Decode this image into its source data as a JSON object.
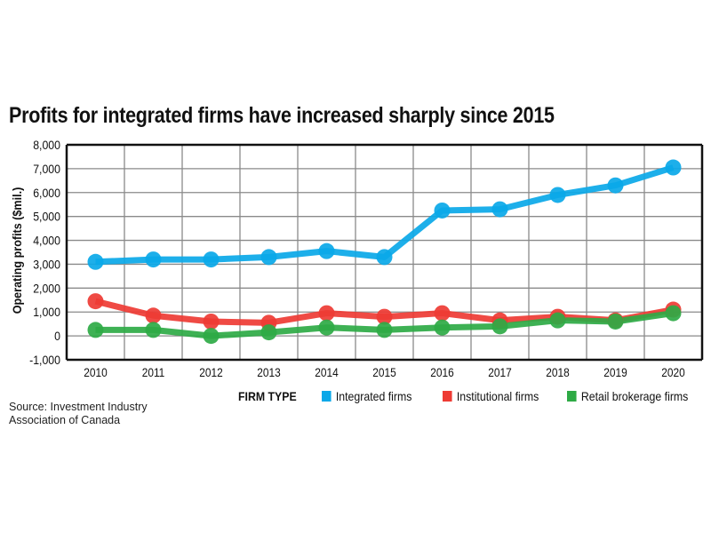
{
  "chart_data": {
    "type": "line",
    "title": "Profits for integrated firms have increased sharply since 2015",
    "xlabel": "",
    "ylabel": "Operating profits ($mil.)",
    "ylim": [
      -1000,
      8000
    ],
    "yticks": [
      8000,
      7000,
      6000,
      5000,
      4000,
      3000,
      2000,
      1000,
      0,
      -1000
    ],
    "ytick_labels": [
      "8,000",
      "7,000",
      "6,000",
      "5,000",
      "4,000",
      "3,000",
      "2,000",
      "1,000",
      "0",
      "-1,000"
    ],
    "categories": [
      "2010",
      "2011",
      "2012",
      "2013",
      "2014",
      "2015",
      "2016",
      "2017",
      "2018",
      "2019",
      "2020"
    ],
    "grid": true,
    "legend_title": "FIRM TYPE",
    "legend_position": "bottom-right",
    "series": [
      {
        "name": "Integrated firms",
        "color": "#0aa8e8",
        "values": [
          3100,
          3200,
          3200,
          3300,
          3550,
          3300,
          5250,
          5300,
          5900,
          6300,
          7050
        ]
      },
      {
        "name": "Institutional firms",
        "color": "#ee3b34",
        "values": [
          1450,
          850,
          600,
          550,
          950,
          800,
          950,
          650,
          800,
          650,
          1100
        ]
      },
      {
        "name": "Retail brokerage firms",
        "color": "#2eaa45",
        "values": [
          250,
          250,
          0,
          150,
          350,
          250,
          350,
          400,
          650,
          600,
          950
        ]
      }
    ],
    "source": "Source: Investment Industry Association of Canada"
  }
}
